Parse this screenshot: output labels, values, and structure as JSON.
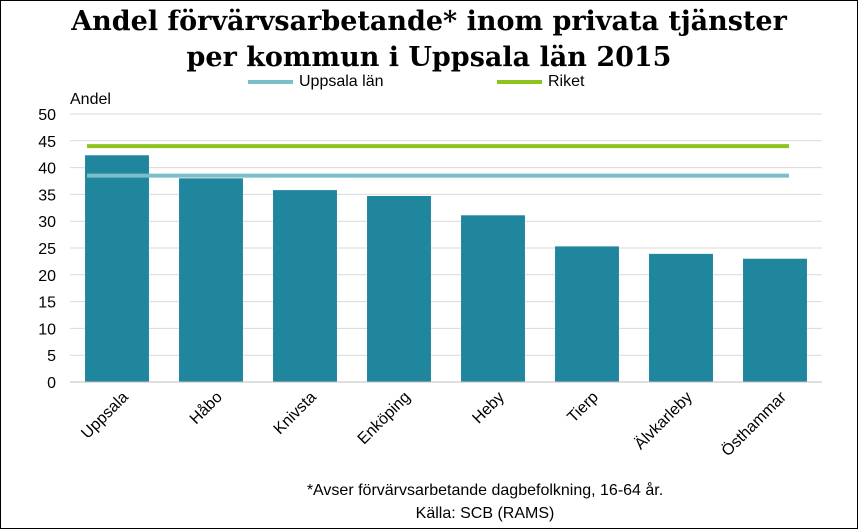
{
  "chart_data": {
    "type": "bar",
    "title": "Andel förvärvsarbetande* inom privata tjänster",
    "subtitle": "per kommun i Uppsala län 2015",
    "ylabel": "Andel",
    "xlabel": "",
    "ylim": [
      0,
      50
    ],
    "yticks": [
      0,
      5,
      10,
      15,
      20,
      25,
      30,
      35,
      40,
      45,
      50
    ],
    "categories": [
      "Uppsala",
      "Håbo",
      "Knivsta",
      "Enköping",
      "Heby",
      "Tierp",
      "Älvkarleby",
      "Östhammar"
    ],
    "series": [
      {
        "values": [
          42.3,
          38.0,
          35.8,
          34.7,
          31.1,
          25.3,
          23.9,
          23.0
        ],
        "color": "#1f869e"
      }
    ],
    "reference_lines": [
      {
        "name": "Uppsala län",
        "value": 38.5,
        "color": "#79bec8"
      },
      {
        "name": "Riket",
        "value": 44.0,
        "color": "#8dc21f"
      }
    ],
    "grid": true,
    "legend_position": "top",
    "footnotes": [
      "*Avser förvärvsarbetande dagbefolkning,  16-64 år.",
      "Källa: SCB (RAMS)"
    ]
  }
}
